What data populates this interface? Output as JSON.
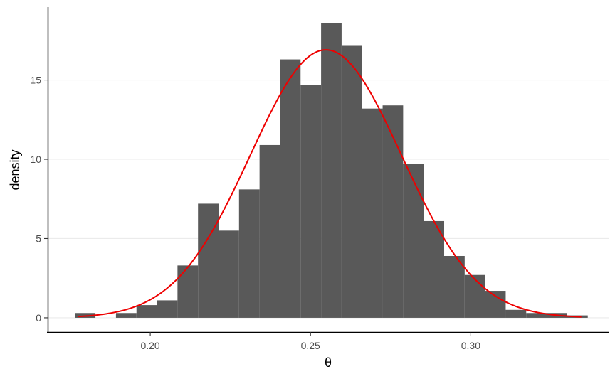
{
  "chart_data": {
    "type": "bar",
    "subtype": "histogram-with-density-curve",
    "xlabel": "θ",
    "ylabel": "density",
    "xlim": [
      0.168,
      0.343
    ],
    "ylim": [
      -0.9,
      19.6
    ],
    "x_ticks": [
      0.2,
      0.25,
      0.3
    ],
    "x_tick_labels": [
      "0.20",
      "0.25",
      "0.30"
    ],
    "y_ticks": [
      0,
      5,
      10,
      15
    ],
    "y_tick_labels": [
      "0",
      "5",
      "10",
      "15"
    ],
    "grid": "horizontal major lines",
    "bin_width": 0.0064,
    "bins": [
      {
        "x0": 0.1765,
        "x1": 0.1829,
        "density": 0.3
      },
      {
        "x0": 0.1829,
        "x1": 0.1893,
        "density": 0.0
      },
      {
        "x0": 0.1893,
        "x1": 0.1957,
        "density": 0.3
      },
      {
        "x0": 0.1957,
        "x1": 0.2021,
        "density": 0.8
      },
      {
        "x0": 0.2021,
        "x1": 0.2085,
        "density": 1.1
      },
      {
        "x0": 0.2085,
        "x1": 0.2149,
        "density": 3.3
      },
      {
        "x0": 0.2149,
        "x1": 0.2213,
        "density": 7.2
      },
      {
        "x0": 0.2213,
        "x1": 0.2277,
        "density": 5.5
      },
      {
        "x0": 0.2277,
        "x1": 0.2341,
        "density": 8.1
      },
      {
        "x0": 0.2341,
        "x1": 0.2405,
        "density": 10.9
      },
      {
        "x0": 0.2405,
        "x1": 0.2469,
        "density": 16.3
      },
      {
        "x0": 0.2469,
        "x1": 0.2533,
        "density": 14.7
      },
      {
        "x0": 0.2533,
        "x1": 0.2597,
        "density": 18.6
      },
      {
        "x0": 0.2597,
        "x1": 0.2661,
        "density": 17.2
      },
      {
        "x0": 0.2661,
        "x1": 0.2725,
        "density": 13.2
      },
      {
        "x0": 0.2725,
        "x1": 0.2789,
        "density": 13.4
      },
      {
        "x0": 0.2789,
        "x1": 0.2853,
        "density": 9.7
      },
      {
        "x0": 0.2853,
        "x1": 0.2917,
        "density": 6.1
      },
      {
        "x0": 0.2917,
        "x1": 0.2981,
        "density": 3.9
      },
      {
        "x0": 0.2981,
        "x1": 0.3045,
        "density": 2.7
      },
      {
        "x0": 0.3045,
        "x1": 0.3109,
        "density": 1.7
      },
      {
        "x0": 0.3109,
        "x1": 0.3173,
        "density": 0.5
      },
      {
        "x0": 0.3173,
        "x1": 0.3237,
        "density": 0.3
      },
      {
        "x0": 0.3237,
        "x1": 0.3301,
        "density": 0.3
      },
      {
        "x0": 0.3301,
        "x1": 0.3365,
        "density": 0.15
      }
    ],
    "curve": {
      "type": "normal-density",
      "mean": 0.2548,
      "sd": 0.0236,
      "x_range": [
        0.1775,
        0.3345
      ]
    },
    "colors": {
      "bar_fill": "#595959",
      "curve": "#ee0000",
      "grid": "#ebebeb",
      "axis": "#000000"
    }
  }
}
